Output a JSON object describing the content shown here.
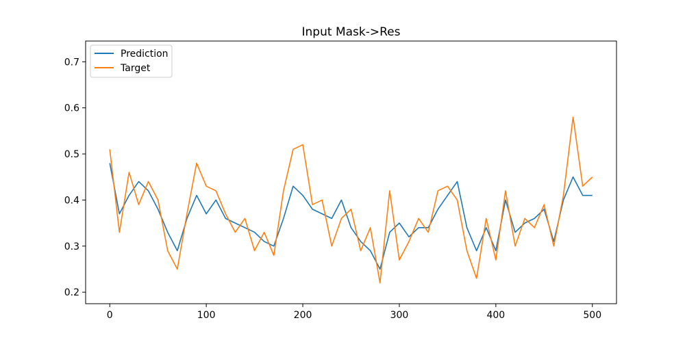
{
  "chart_data": {
    "type": "line",
    "title": "Input Mask->Res",
    "xlabel": "",
    "ylabel": "",
    "xlim": [
      -25,
      525
    ],
    "ylim": [
      0.175,
      0.745
    ],
    "xticks": [
      0,
      100,
      200,
      300,
      400,
      500
    ],
    "xtick_labels": [
      "0",
      "100",
      "200",
      "300",
      "400",
      "500"
    ],
    "yticks": [
      0.2,
      0.3,
      0.4,
      0.5,
      0.6,
      0.7
    ],
    "ytick_labels": [
      "0.2",
      "0.3",
      "0.4",
      "0.5",
      "0.6",
      "0.7"
    ],
    "grid": false,
    "legend_position": "upper-left",
    "x": [
      0,
      10,
      20,
      30,
      40,
      50,
      60,
      70,
      80,
      90,
      100,
      110,
      120,
      130,
      140,
      150,
      160,
      170,
      180,
      190,
      200,
      210,
      220,
      230,
      240,
      250,
      260,
      270,
      280,
      290,
      300,
      310,
      320,
      330,
      340,
      350,
      360,
      370,
      380,
      390,
      400,
      410,
      420,
      430,
      440,
      450,
      460,
      470,
      480,
      490,
      500
    ],
    "series": [
      {
        "name": "Prediction",
        "color": "#1f77b4",
        "values": [
          0.48,
          0.37,
          0.41,
          0.44,
          0.42,
          0.38,
          0.33,
          0.29,
          0.36,
          0.41,
          0.37,
          0.4,
          0.36,
          0.35,
          0.34,
          0.33,
          0.31,
          0.3,
          0.36,
          0.43,
          0.41,
          0.38,
          0.37,
          0.36,
          0.4,
          0.34,
          0.31,
          0.29,
          0.25,
          0.33,
          0.35,
          0.32,
          0.34,
          0.34,
          0.38,
          0.41,
          0.44,
          0.34,
          0.29,
          0.34,
          0.29,
          0.4,
          0.33,
          0.35,
          0.36,
          0.38,
          0.31,
          0.4,
          0.45,
          0.41,
          0.41
        ]
      },
      {
        "name": "Target",
        "color": "#ff7f0e",
        "values": [
          0.51,
          0.33,
          0.46,
          0.39,
          0.44,
          0.4,
          0.29,
          0.25,
          0.37,
          0.48,
          0.43,
          0.42,
          0.37,
          0.33,
          0.36,
          0.29,
          0.33,
          0.28,
          0.42,
          0.51,
          0.52,
          0.39,
          0.4,
          0.3,
          0.36,
          0.38,
          0.29,
          0.34,
          0.22,
          0.42,
          0.27,
          0.31,
          0.36,
          0.33,
          0.42,
          0.43,
          0.4,
          0.29,
          0.23,
          0.36,
          0.27,
          0.42,
          0.3,
          0.36,
          0.34,
          0.39,
          0.3,
          0.41,
          0.58,
          0.43,
          0.45
        ]
      }
    ]
  }
}
